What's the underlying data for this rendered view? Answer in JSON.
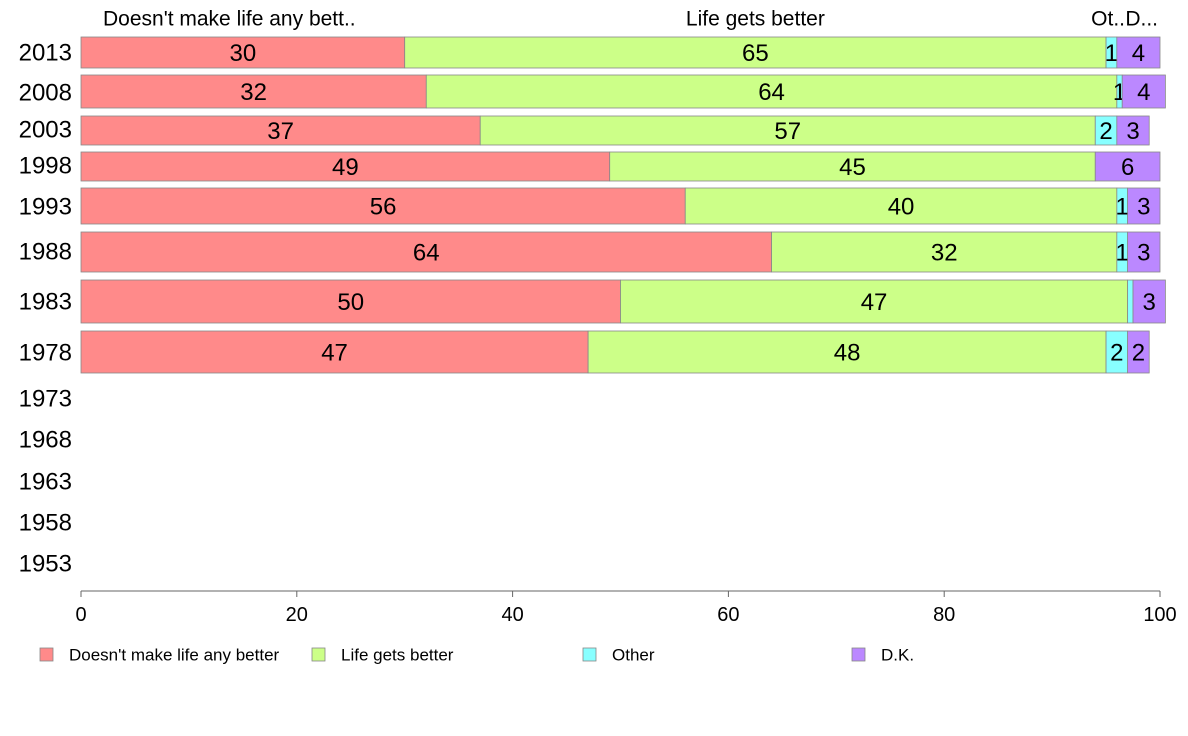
{
  "chart_data": {
    "type": "bar",
    "orientation": "horizontal",
    "stacked": true,
    "categories": [
      "2013",
      "2008",
      "2003",
      "1998",
      "1993",
      "1988",
      "1983",
      "1978",
      "1973",
      "1968",
      "1963",
      "1958",
      "1953"
    ],
    "series": [
      {
        "name": "Doesn't make life any better",
        "header": "Doesn't make life any bett..",
        "color": "#ff8a8a",
        "values": [
          30,
          32,
          37,
          49,
          56,
          64,
          50,
          47,
          null,
          null,
          null,
          null,
          null
        ]
      },
      {
        "name": "Life gets better",
        "header": "Life gets better",
        "color": "#ccff88",
        "values": [
          65,
          64,
          57,
          45,
          40,
          32,
          47,
          48,
          null,
          null,
          null,
          null,
          null
        ]
      },
      {
        "name": "Other",
        "header": "Ot..",
        "color": "#88ffff",
        "values": [
          1,
          0.5,
          2,
          0,
          1,
          1,
          0.5,
          2,
          null,
          null,
          null,
          null,
          null
        ],
        "labels": [
          "1",
          "1",
          "2",
          "",
          "1",
          "1",
          "",
          "2",
          "",
          "",
          "",
          "",
          ""
        ]
      },
      {
        "name": "D.K.",
        "header": "D...",
        "color": "#bb88ff",
        "values": [
          4,
          4,
          3,
          6,
          3,
          3,
          3,
          2,
          null,
          null,
          null,
          null,
          null
        ],
        "labels": [
          "4",
          "4",
          "3",
          "6",
          "3",
          "3",
          "3",
          "2",
          "",
          "",
          "",
          "",
          ""
        ]
      }
    ],
    "xlim": [
      0,
      100
    ],
    "xticks": [
      0,
      20,
      40,
      60,
      80,
      100
    ],
    "legend": "bottom"
  }
}
